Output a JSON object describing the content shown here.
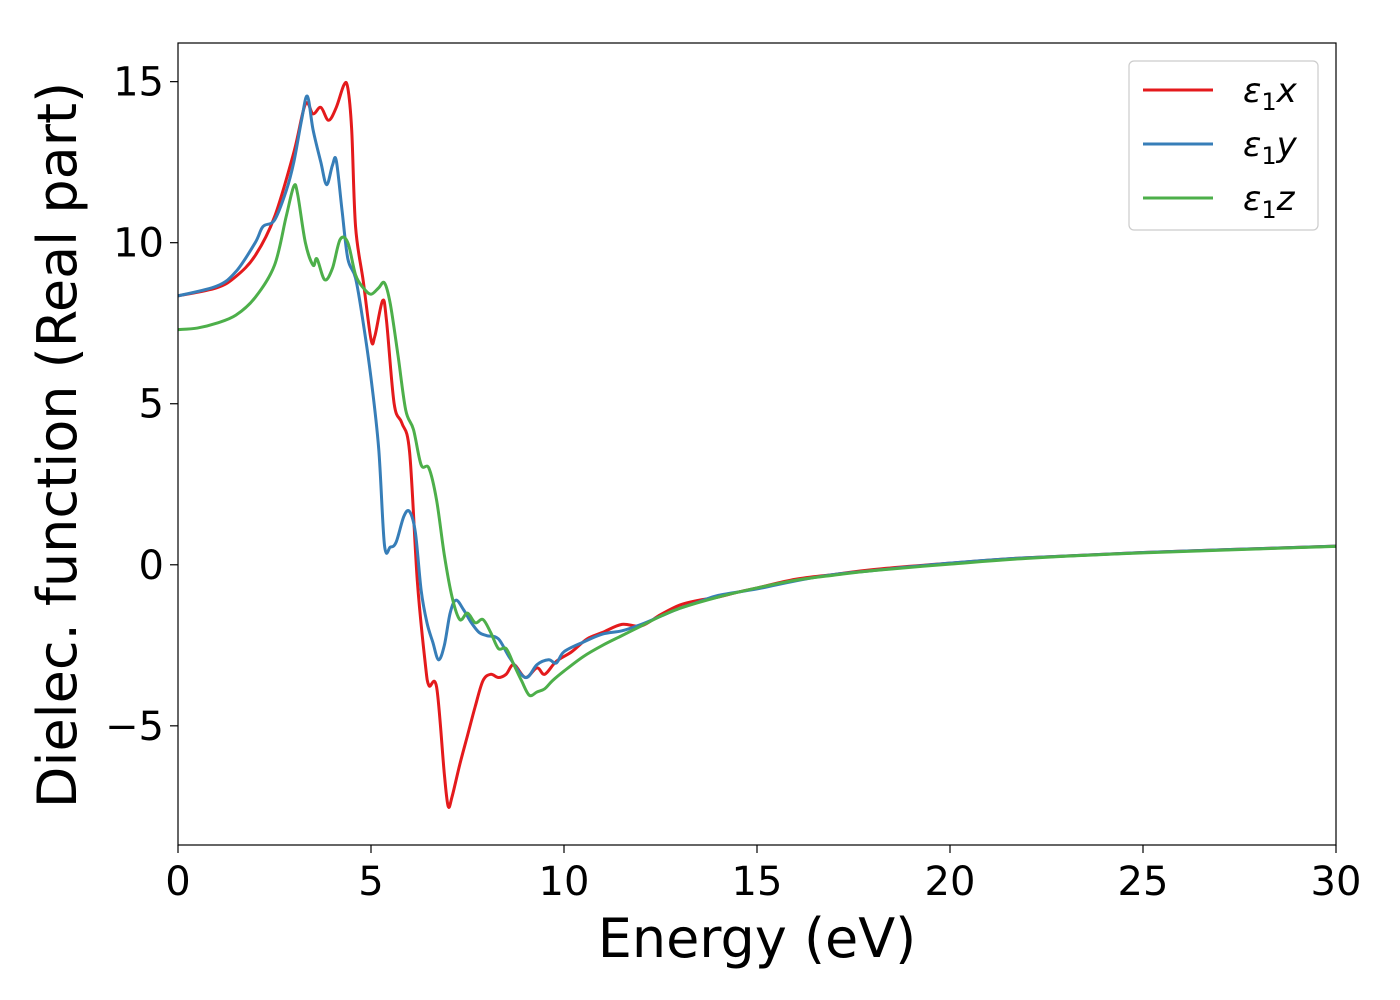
{
  "chart_data": {
    "type": "line",
    "title": "",
    "xlabel": "Energy (eV)",
    "ylabel": "Dielec. function (Real part)",
    "xlim": [
      0,
      30
    ],
    "ylim": [
      -8.7,
      16.2
    ],
    "xticks": [
      0,
      5,
      10,
      15,
      20,
      25,
      30
    ],
    "xtick_labels": [
      "0",
      "5",
      "10",
      "15",
      "20",
      "25",
      "30"
    ],
    "yticks": [
      -5,
      0,
      5,
      10,
      15
    ],
    "ytick_labels": [
      "−5",
      "0",
      "5",
      "10",
      "15"
    ],
    "grid": false,
    "legend_position": "top-right",
    "series": [
      {
        "name": "ε1x",
        "legend_main": "ε",
        "legend_sub": "1",
        "legend_suffix": "x",
        "color": "#e41a1c",
        "x": [
          0,
          1,
          1.5,
          2,
          2.5,
          3.0,
          3.3,
          3.5,
          3.7,
          3.9,
          4.1,
          4.3,
          4.4,
          4.5,
          4.6,
          4.8,
          5.0,
          5.1,
          5.3,
          5.4,
          5.6,
          5.8,
          6.0,
          6.2,
          6.4,
          6.5,
          6.7,
          6.9,
          7.0,
          7.1,
          7.3,
          7.5,
          7.7,
          7.9,
          8.1,
          8.3,
          8.5,
          8.7,
          9.0,
          9.3,
          9.5,
          9.8,
          10.2,
          10.6,
          11.0,
          11.5,
          12.0,
          12.5,
          13.0,
          13.5,
          14.0,
          14.5,
          15.0,
          16.0,
          17.0,
          18.0,
          20.0,
          22.0,
          25.0,
          30.0
        ],
        "y": [
          8.35,
          8.6,
          8.95,
          9.6,
          10.8,
          12.8,
          14.3,
          14.0,
          14.2,
          13.8,
          14.2,
          14.9,
          14.8,
          13.5,
          10.5,
          8.8,
          7.0,
          7.1,
          8.2,
          7.6,
          5.0,
          4.4,
          3.5,
          -0.5,
          -3.0,
          -3.75,
          -3.8,
          -6.5,
          -7.5,
          -7.2,
          -6.2,
          -5.3,
          -4.4,
          -3.6,
          -3.4,
          -3.5,
          -3.4,
          -3.1,
          -3.5,
          -3.2,
          -3.4,
          -3.0,
          -2.7,
          -2.3,
          -2.1,
          -1.85,
          -1.9,
          -1.55,
          -1.25,
          -1.1,
          -1.0,
          -0.85,
          -0.72,
          -0.45,
          -0.3,
          -0.15,
          0.05,
          0.22,
          0.38,
          0.58
        ]
      },
      {
        "name": "ε1y",
        "legend_main": "ε",
        "legend_sub": "1",
        "legend_suffix": "y",
        "color": "#377eb8",
        "x": [
          0,
          1,
          1.5,
          2,
          2.2,
          2.5,
          2.8,
          3.0,
          3.2,
          3.35,
          3.5,
          3.7,
          3.85,
          4.0,
          4.1,
          4.25,
          4.4,
          4.6,
          4.8,
          5.0,
          5.2,
          5.35,
          5.5,
          5.65,
          5.85,
          6.0,
          6.15,
          6.3,
          6.45,
          6.6,
          6.75,
          6.9,
          7.05,
          7.2,
          7.4,
          7.6,
          7.8,
          8.0,
          8.3,
          8.6,
          9.0,
          9.3,
          9.6,
          9.8,
          10.0,
          10.5,
          11.0,
          11.5,
          12.0,
          12.5,
          13.0,
          13.5,
          14.0,
          15.0,
          16.0,
          17.0,
          18.0,
          20.0,
          22.0,
          25.0,
          30.0
        ],
        "y": [
          8.35,
          8.65,
          9.1,
          10.0,
          10.5,
          10.7,
          11.6,
          12.5,
          13.8,
          14.55,
          13.5,
          12.5,
          11.8,
          12.4,
          12.55,
          11.0,
          9.5,
          8.9,
          7.5,
          5.8,
          3.6,
          0.6,
          0.55,
          0.7,
          1.5,
          1.65,
          1.0,
          -0.8,
          -1.8,
          -2.4,
          -2.95,
          -2.5,
          -1.5,
          -1.1,
          -1.4,
          -1.8,
          -2.1,
          -2.2,
          -2.3,
          -2.9,
          -3.5,
          -3.1,
          -2.95,
          -3.05,
          -2.7,
          -2.4,
          -2.15,
          -2.05,
          -1.85,
          -1.6,
          -1.35,
          -1.15,
          -0.95,
          -0.75,
          -0.5,
          -0.3,
          -0.18,
          0.05,
          0.22,
          0.38,
          0.58
        ]
      },
      {
        "name": "ε1z",
        "legend_main": "ε",
        "legend_sub": "1",
        "legend_suffix": "z",
        "color": "#4daf4a",
        "x": [
          0,
          0.5,
          1.0,
          1.5,
          2.0,
          2.5,
          2.8,
          3.0,
          3.1,
          3.3,
          3.5,
          3.6,
          3.8,
          4.0,
          4.2,
          4.4,
          4.6,
          4.8,
          5.0,
          5.2,
          5.35,
          5.5,
          5.7,
          5.9,
          6.1,
          6.3,
          6.5,
          6.7,
          6.9,
          7.1,
          7.3,
          7.5,
          7.7,
          7.9,
          8.1,
          8.3,
          8.5,
          8.7,
          8.9,
          9.1,
          9.3,
          9.5,
          9.7,
          10.0,
          10.5,
          11.0,
          11.5,
          12.0,
          12.5,
          13.0,
          14.0,
          15.0,
          16.0,
          17.0,
          18.0,
          20.0,
          22.0,
          25.0,
          30.0
        ],
        "y": [
          7.3,
          7.35,
          7.5,
          7.75,
          8.3,
          9.3,
          10.8,
          11.75,
          11.5,
          10.0,
          9.3,
          9.5,
          8.85,
          9.2,
          10.1,
          10.0,
          9.0,
          8.6,
          8.4,
          8.6,
          8.75,
          8.1,
          6.5,
          4.8,
          4.2,
          3.1,
          3.0,
          2.0,
          0.3,
          -1.0,
          -1.7,
          -1.5,
          -1.8,
          -1.7,
          -2.1,
          -2.6,
          -2.6,
          -3.1,
          -3.6,
          -4.05,
          -3.95,
          -3.85,
          -3.6,
          -3.3,
          -2.85,
          -2.5,
          -2.2,
          -1.9,
          -1.6,
          -1.35,
          -1.0,
          -0.72,
          -0.48,
          -0.32,
          -0.18,
          0.02,
          0.2,
          0.37,
          0.57
        ]
      }
    ]
  }
}
